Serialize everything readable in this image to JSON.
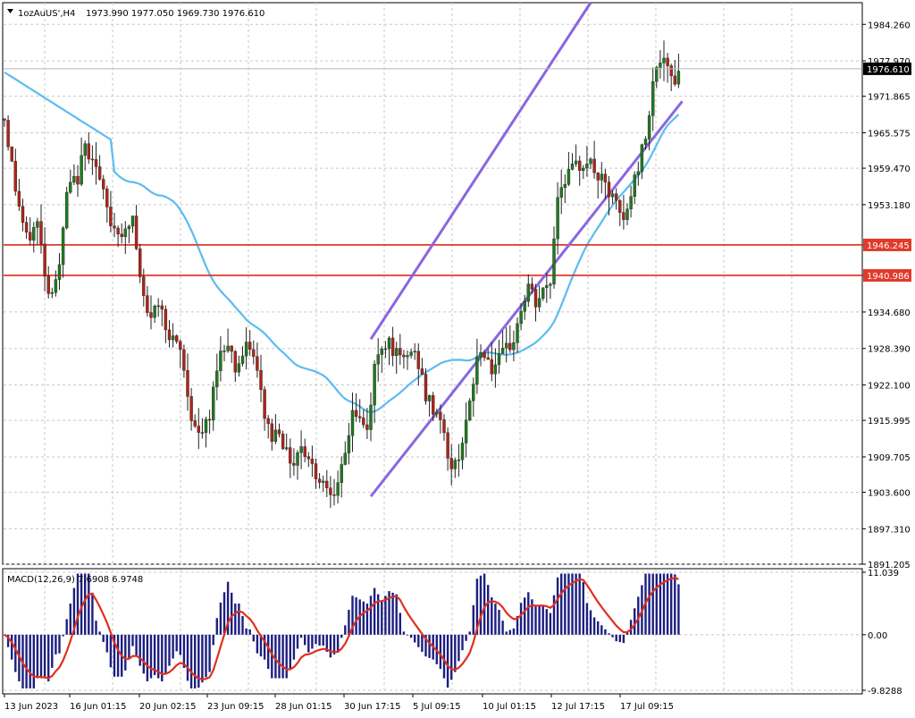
{
  "header": {
    "symbol_label": "1ozAuUS',H4",
    "ohlc_text": "1973.990 1977.050 1969.730 1976.610"
  },
  "macd_header": {
    "label": "MACD(12,26,9) 7.6908 6.9748"
  },
  "colors": {
    "bull_candle": "#1f7a1f",
    "bear_candle": "#b02418",
    "wick": "#222222",
    "ma_line": "#5bbcf0",
    "channel": "#8a66e0",
    "support": "#e03a2a",
    "macd_hist": "#1c1f80",
    "macd_signal": "#e0301e",
    "price_box": "#000000",
    "level_box": "#e03a2a"
  },
  "chart_data": [
    {
      "type": "candlestick",
      "title": "",
      "symbol": "1ozAuUS'",
      "timeframe": "H4",
      "last_ohlc": {
        "open": 1973.99,
        "high": 1977.05,
        "low": 1969.73,
        "close": 1976.61
      },
      "current_price_label": "1976.610",
      "ylim": [
        1891.205,
        1988.0
      ],
      "y_ticks": [
        "1984.260",
        "1977.970",
        "1971.865",
        "1965.575",
        "1959.470",
        "1953.180",
        "1946.245",
        "1940.986",
        "1934.680",
        "1928.390",
        "1922.100",
        "1915.995",
        "1909.705",
        "1903.600",
        "1897.310",
        "1891.205"
      ],
      "x_tick_labels": [
        "13 Jun 2023",
        "16 Jun 01:15",
        "20 Jun 02:15",
        "23 Jun 09:15",
        "28 Jun 01:15",
        "30 Jun 17:15",
        "5 Jul 09:15",
        "10 Jul 01:15",
        "12 Jul 17:15",
        "17 Jul 09:15"
      ],
      "horizontal_levels": [
        {
          "price": 1946.245,
          "label": "1946.245"
        },
        {
          "price": 1940.986,
          "label": "1940.986"
        }
      ],
      "channel": {
        "upper": {
          "from": [
            0,
            1930.0
          ],
          "to": [
            160,
            1988.0
          ]
        },
        "lower": {
          "from": [
            0,
            1902.9
          ],
          "to": [
            185,
            1971.0
          ]
        }
      },
      "grid": true
    },
    {
      "type": "bar",
      "title": "",
      "indicator": "MACD(12,26,9)",
      "values_text": "7.6908 6.9748",
      "ylim": [
        -9.8288,
        11.039
      ],
      "y_ticks": [
        "11.039",
        "0.00",
        "-9.8288"
      ],
      "grid": true
    }
  ]
}
